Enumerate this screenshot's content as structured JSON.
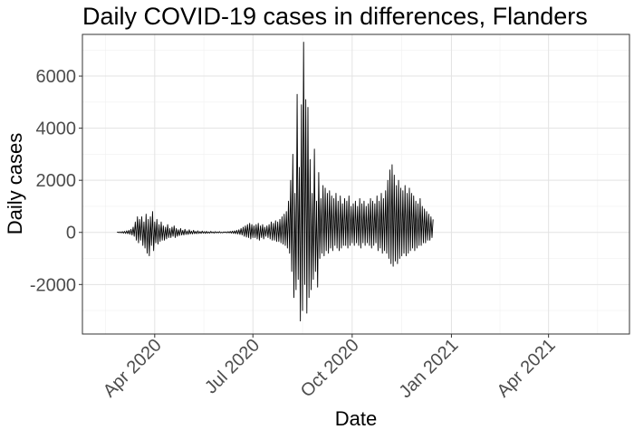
{
  "chart_data": {
    "type": "line",
    "title": "Daily COVID-19 cases in differences, Flanders",
    "xlabel": "Date",
    "ylabel": "Daily cases",
    "x_type": "date",
    "xlim": [
      "2020-01-25",
      "2021-06-15"
    ],
    "ylim": [
      -3900,
      7600
    ],
    "x_ticks": [
      {
        "date": "2020-04-01",
        "label": "Apr 2020"
      },
      {
        "date": "2020-07-01",
        "label": "Jul 2020"
      },
      {
        "date": "2020-10-01",
        "label": "Oct 2020"
      },
      {
        "date": "2021-01-01",
        "label": "Jan 2021"
      },
      {
        "date": "2021-04-01",
        "label": "Apr 2021"
      }
    ],
    "y_ticks": [
      -2000,
      0,
      2000,
      4000,
      6000
    ],
    "grid": true,
    "line_color": "#000000",
    "series": [
      {
        "x_start": "2020-02-26",
        "x_step_days": 1,
        "values": [
          0,
          10,
          -10,
          20,
          -20,
          30,
          -30,
          40,
          -40,
          60,
          -50,
          80,
          -70,
          120,
          -100,
          200,
          -150,
          400,
          -300,
          600,
          -400,
          500,
          -300,
          600,
          -500,
          400,
          -600,
          700,
          -800,
          500,
          -900,
          600,
          -500,
          800,
          -700,
          400,
          -400,
          500,
          -450,
          300,
          -350,
          400,
          -300,
          250,
          -300,
          200,
          -250,
          300,
          -200,
          150,
          -200,
          200,
          -150,
          250,
          -200,
          150,
          -150,
          100,
          -120,
          150,
          -100,
          80,
          -100,
          120,
          -80,
          60,
          -80,
          100,
          -60,
          50,
          -60,
          80,
          -50,
          40,
          -50,
          60,
          -40,
          30,
          -40,
          50,
          -30,
          30,
          -40,
          40,
          -30,
          20,
          -30,
          40,
          -20,
          20,
          -30,
          30,
          -20,
          20,
          -20,
          30,
          -20,
          10,
          -20,
          20,
          -10,
          20,
          -20,
          30,
          -20,
          40,
          -30,
          50,
          -40,
          60,
          -50,
          80,
          -60,
          100,
          -80,
          150,
          -100,
          200,
          -150,
          250,
          -180,
          300,
          -200,
          350,
          -250,
          300,
          -200,
          250,
          -200,
          300,
          -250,
          350,
          -300,
          250,
          -200,
          300,
          -250,
          200,
          -150,
          250,
          -200,
          300,
          -250,
          400,
          -300,
          350,
          -300,
          450,
          -350,
          400,
          -350,
          500,
          -400,
          600,
          -450,
          700,
          -500,
          800,
          -600,
          1200,
          -800,
          2000,
          -1500,
          3000,
          -2500,
          1500,
          -2200,
          5300,
          -1800,
          2500,
          -3400,
          4900,
          -3000,
          7300,
          -2000,
          5100,
          -3100,
          4800,
          -2500,
          2800,
          -2200,
          1500,
          -1800,
          3200,
          -1500,
          1200,
          -2100,
          2300,
          -1000,
          1300,
          -800,
          1800,
          -900,
          1700,
          -700,
          1500,
          -800,
          1600,
          -600,
          1400,
          -700,
          1300,
          -500,
          1500,
          -600,
          1200,
          -700,
          1400,
          -600,
          1100,
          -500,
          1300,
          -500,
          1200,
          -600,
          1400,
          -500,
          1000,
          -400,
          1100,
          -500,
          1200,
          -400,
          1000,
          -500,
          1300,
          -600,
          1100,
          -400,
          1200,
          -500,
          1000,
          -400,
          1100,
          -500,
          1300,
          -600,
          1200,
          -500,
          1100,
          -400,
          1400,
          -700,
          1200,
          -600,
          1500,
          -800,
          1300,
          -700,
          1600,
          -800,
          2000,
          -1000,
          2400,
          -1200,
          2600,
          -1300,
          2200,
          -1100,
          1800,
          -1200,
          2000,
          -1000,
          1700,
          -900,
          1600,
          -800,
          1800,
          -900,
          1500,
          -800,
          1700,
          -700,
          1500,
          -600,
          1400,
          -700,
          1200,
          -600,
          1100,
          -500,
          1300,
          -500,
          1000,
          -400,
          900,
          -400,
          800,
          -300,
          700,
          -300,
          600,
          -200,
          500
        ]
      }
    ]
  }
}
